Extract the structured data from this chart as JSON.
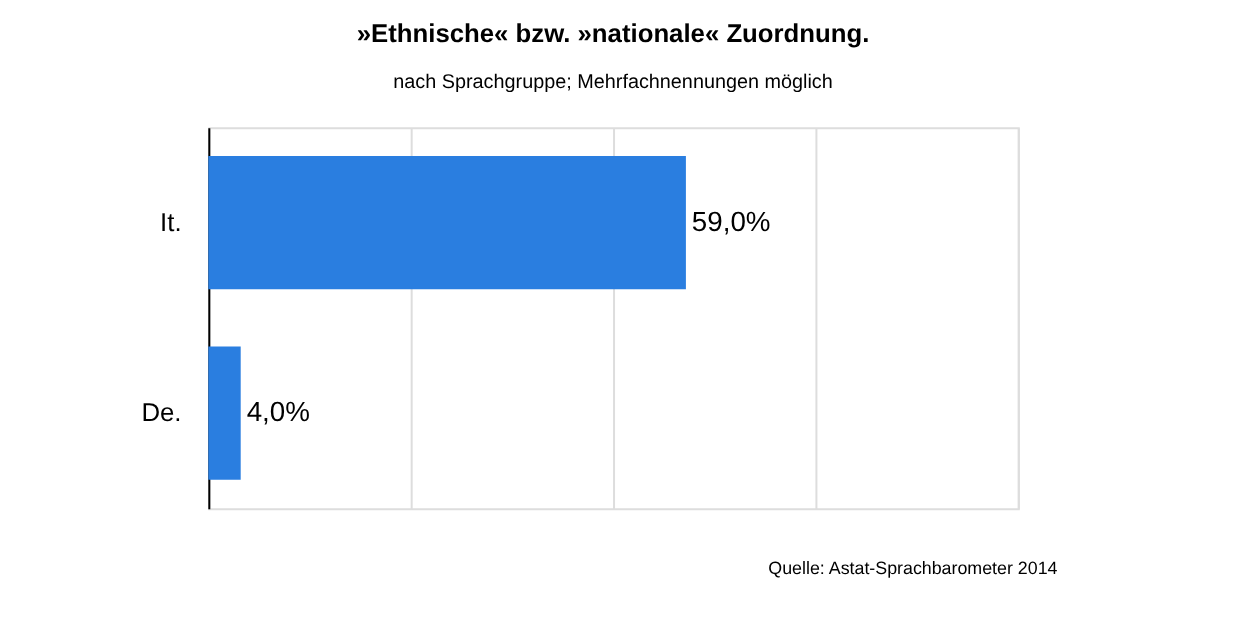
{
  "chart_data": {
    "type": "bar",
    "orientation": "horizontal",
    "title": "»Ethnische« bzw. »nationale« Zuordnung.",
    "subtitle": "nach Sprachgruppe; Mehrfachnennungen möglich",
    "categories": [
      "It.",
      "De."
    ],
    "values": [
      59.0,
      4.0
    ],
    "color": "#2a7ee0",
    "value_labels": [
      "59,0%",
      "4,0%"
    ],
    "xlim": [
      0,
      100
    ],
    "xticks": [
      {
        "value": 0,
        "label": null
      },
      {
        "value": 25,
        "label": null
      },
      {
        "value": 50,
        "label": null
      },
      {
        "value": 75,
        "label": null
      },
      {
        "value": 100,
        "label": null
      }
    ],
    "tick_labels": "y",
    "grid": "x",
    "annotations": [
      "Quelle: Astat-Sprachbarometer 2014"
    ]
  }
}
